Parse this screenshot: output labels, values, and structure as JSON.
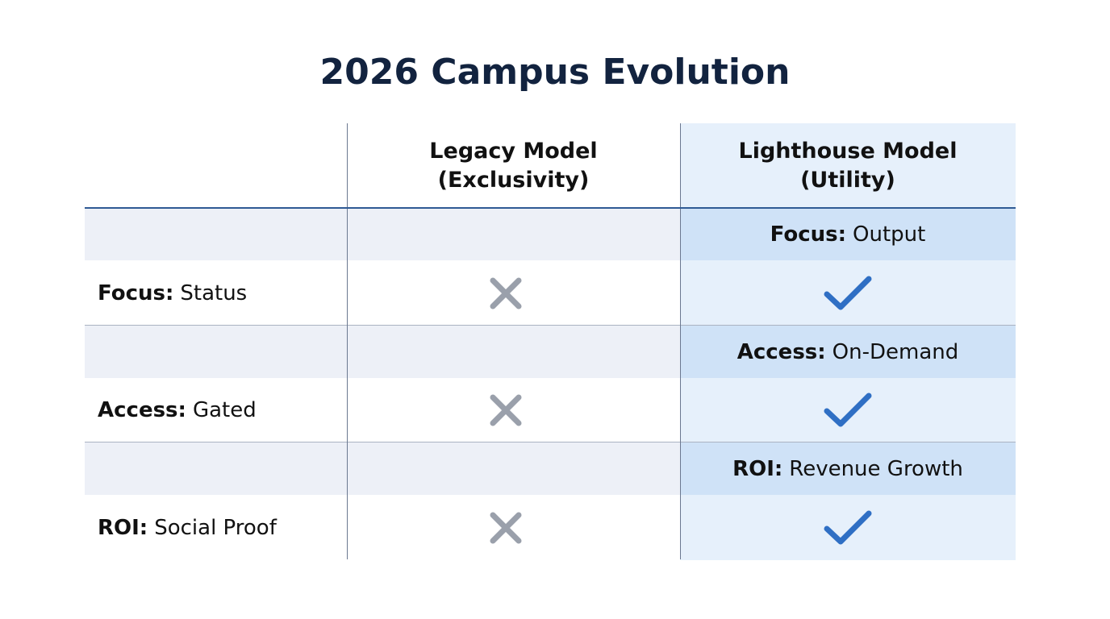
{
  "title": "2026 Campus Evolution",
  "columns": [
    {
      "line1": "Legacy Model",
      "line2": "(Exclusivity)"
    },
    {
      "line1": "Lighthouse Model",
      "line2": "(Utility)"
    }
  ],
  "rows": [
    {
      "legacy_key": "Focus:",
      "legacy_value": "Status",
      "legacy_icon": "x-icon",
      "lighthouse_key": "Focus:",
      "lighthouse_value": "Output",
      "lighthouse_icon": "check-icon"
    },
    {
      "legacy_key": "Access:",
      "legacy_value": "Gated",
      "legacy_icon": "x-icon",
      "lighthouse_key": "Access:",
      "lighthouse_value": "On-Demand",
      "lighthouse_icon": "check-icon"
    },
    {
      "legacy_key": "ROI:",
      "legacy_value": "Social Proof",
      "legacy_icon": "x-icon",
      "lighthouse_key": "ROI:",
      "lighthouse_value": "Revenue Growth",
      "lighthouse_icon": "check-icon"
    }
  ],
  "colors": {
    "title": "#12233f",
    "check": "#2f6fc4",
    "cross": "#9aa0ab",
    "lighthouse_band": "#cfe2f7",
    "lighthouse_cell": "#e6f0fb",
    "band": "#edf0f7"
  }
}
